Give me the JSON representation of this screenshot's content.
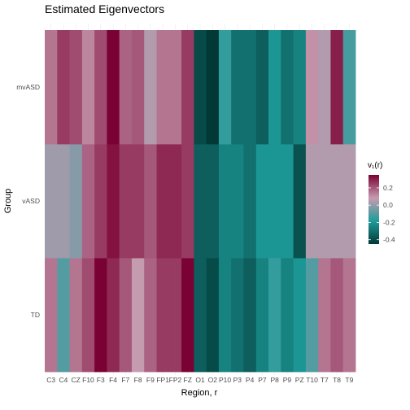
{
  "chart_data": {
    "type": "heatmap",
    "title": "Estimated Eigenvectors",
    "xlabel": "Region, r",
    "ylabel": "Group",
    "x": [
      "C3",
      "C4",
      "CZ",
      "F10",
      "F3",
      "F4",
      "F7",
      "F8",
      "F9",
      "FP1",
      "FP2",
      "FZ",
      "O1",
      "O2",
      "P10",
      "P3",
      "P4",
      "P7",
      "P8",
      "P9",
      "PZ",
      "T10",
      "T7",
      "T8",
      "T9"
    ],
    "y": [
      "TD",
      "vASD",
      "mvASD"
    ],
    "values": {
      "mvASD": [
        0.15,
        0.25,
        0.22,
        0.12,
        0.22,
        0.35,
        0.18,
        0.2,
        0.05,
        0.15,
        0.15,
        0.25,
        -0.4,
        -0.45,
        -0.15,
        -0.3,
        -0.3,
        -0.35,
        -0.2,
        -0.3,
        -0.25,
        0.1,
        0.05,
        0.3,
        -0.12
      ],
      "vASD": [
        0.02,
        0.02,
        -0.02,
        0.18,
        0.25,
        0.32,
        0.25,
        0.25,
        0.2,
        0.28,
        0.28,
        0.25,
        -0.35,
        -0.35,
        -0.25,
        -0.25,
        -0.3,
        -0.2,
        -0.2,
        -0.2,
        -0.38,
        0.05,
        0.05,
        0.05,
        0.05
      ],
      "TD": [
        0.15,
        -0.1,
        0.15,
        0.22,
        0.35,
        0.28,
        0.2,
        0.08,
        0.18,
        0.25,
        0.25,
        0.35,
        -0.35,
        -0.4,
        -0.25,
        -0.3,
        -0.35,
        -0.25,
        -0.15,
        -0.25,
        -0.2,
        -0.1,
        0.15,
        0.2,
        0.15
      ]
    },
    "colorbar": {
      "title": "v₁(r)",
      "ticks": [
        0.2,
        0.0,
        -0.2,
        -0.4
      ],
      "tick_labels": [
        "0.2",
        "0.0",
        "-0.2",
        "-0.4"
      ],
      "range": [
        -0.45,
        0.35
      ],
      "colors": [
        "#023836",
        "#1e9c9a",
        "#c79bb0",
        "#7a0133"
      ]
    },
    "legend_position": "right",
    "grid": true
  }
}
